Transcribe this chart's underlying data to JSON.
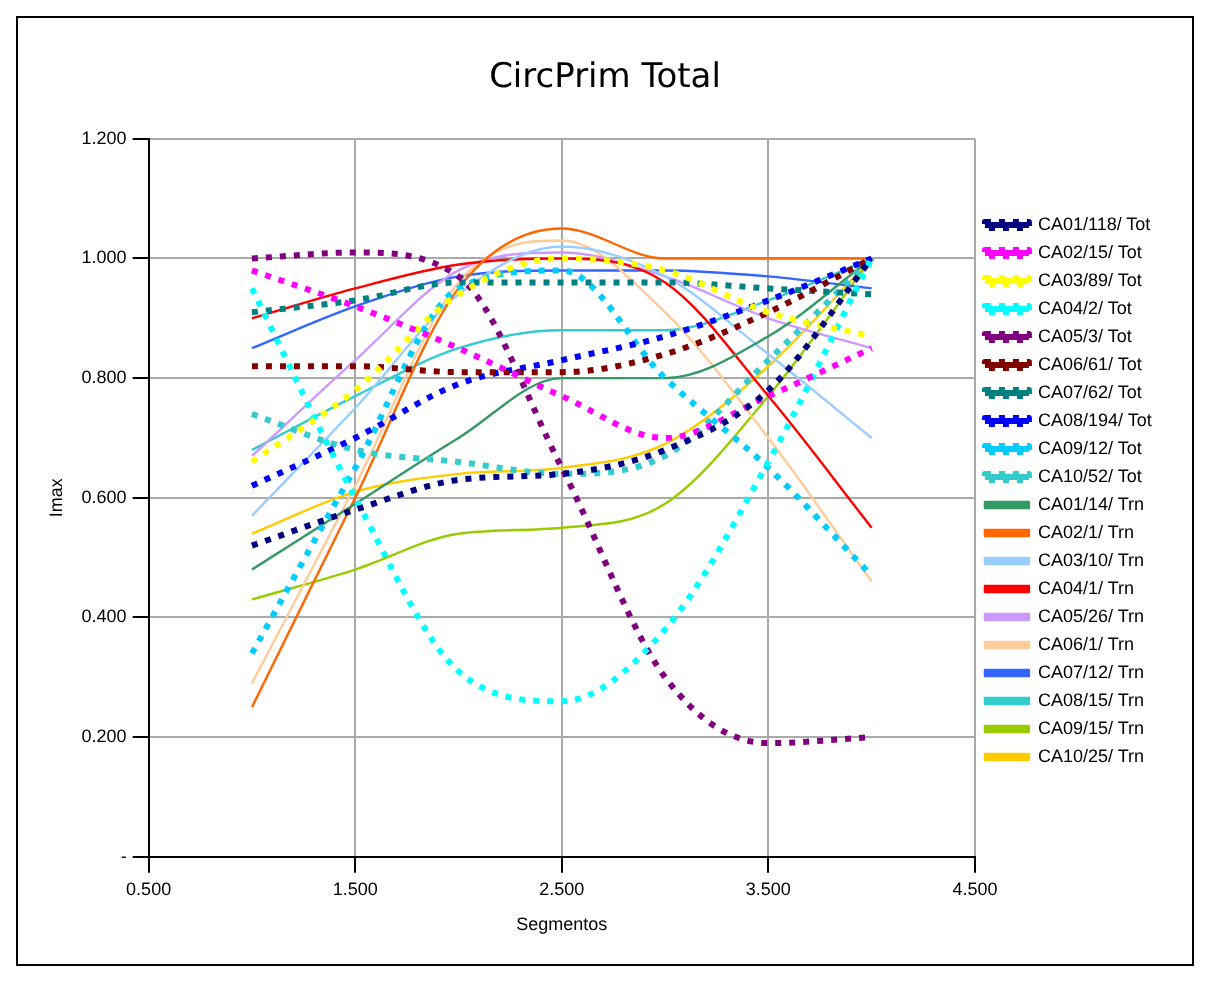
{
  "chart_data": {
    "type": "line",
    "title": "CircPrim Total",
    "xlabel": "Segmentos",
    "ylabel": "Imax",
    "x": [
      1,
      1.5,
      2,
      2.5,
      3,
      3.5,
      4
    ],
    "xlim": [
      0.5,
      4.5
    ],
    "xticks": [
      {
        "value": 0.5,
        "label": "0.500"
      },
      {
        "value": 1.5,
        "label": "1.500"
      },
      {
        "value": 2.5,
        "label": "2.500"
      },
      {
        "value": 3.5,
        "label": "3.500"
      },
      {
        "value": 4.5,
        "label": "4.500"
      }
    ],
    "ylim": [
      0,
      1.2
    ],
    "yticks": [
      {
        "value": 0,
        "label": "-"
      },
      {
        "value": 0.2,
        "label": "0.200"
      },
      {
        "value": 0.4,
        "label": "0.400"
      },
      {
        "value": 0.6,
        "label": "0.600"
      },
      {
        "value": 0.8,
        "label": "0.800"
      },
      {
        "value": 1.0,
        "label": "1.000"
      },
      {
        "value": 1.2,
        "label": "1.200"
      }
    ],
    "grid": true,
    "legend": "right",
    "marker": "none",
    "series": [
      {
        "name": "CA01/118/ Tot",
        "color": "#000080",
        "line_style": "dotted",
        "values": [
          0.52,
          0.58,
          0.63,
          0.64,
          0.68,
          0.78,
          1.0
        ]
      },
      {
        "name": "CA02/15/ Tot",
        "color": "#ff00ff",
        "line_style": "dotted",
        "values": [
          0.98,
          0.92,
          0.85,
          0.77,
          0.7,
          0.77,
          0.85
        ]
      },
      {
        "name": "CA03/89/ Tot",
        "color": "#ffff00",
        "line_style": "dotted",
        "values": [
          0.66,
          0.78,
          0.94,
          1.0,
          0.98,
          0.91,
          0.87
        ]
      },
      {
        "name": "CA04/2/ Tot",
        "color": "#00ffff",
        "line_style": "dotted",
        "values": [
          0.95,
          0.6,
          0.31,
          0.26,
          0.38,
          0.66,
          1.0
        ]
      },
      {
        "name": "CA05/3/ Tot",
        "color": "#800080",
        "line_style": "dotted",
        "values": [
          1.0,
          1.01,
          0.97,
          0.65,
          0.3,
          0.19,
          0.2
        ]
      },
      {
        "name": "CA06/61/ Tot",
        "color": "#800000",
        "line_style": "dotted",
        "values": [
          0.82,
          0.82,
          0.81,
          0.81,
          0.84,
          0.91,
          1.0
        ]
      },
      {
        "name": "CA07/62/ Tot",
        "color": "#008080",
        "line_style": "dotted",
        "values": [
          0.91,
          0.93,
          0.96,
          0.96,
          0.96,
          0.95,
          0.94
        ]
      },
      {
        "name": "CA08/194/ Tot",
        "color": "#0000ff",
        "line_style": "dotted",
        "values": [
          0.62,
          0.7,
          0.79,
          0.83,
          0.87,
          0.93,
          1.0
        ]
      },
      {
        "name": "CA09/12/ Tot",
        "color": "#00ccff",
        "line_style": "dotted",
        "values": [
          0.34,
          0.65,
          0.95,
          0.98,
          0.8,
          0.65,
          0.47
        ]
      },
      {
        "name": "CA10/52/ Tot",
        "color": "#33cccc",
        "line_style": "dotted",
        "values": [
          0.74,
          0.68,
          0.66,
          0.64,
          0.67,
          0.83,
          1.0
        ]
      },
      {
        "name": "CA01/14/ Trn",
        "color": "#339966",
        "line_style": "solid",
        "values": [
          0.48,
          0.59,
          0.7,
          0.8,
          0.8,
          0.87,
          1.0
        ]
      },
      {
        "name": "CA02/1/ Trn",
        "color": "#ff6600",
        "line_style": "solid",
        "values": [
          0.25,
          0.6,
          0.95,
          1.05,
          1.0,
          1.0,
          1.0
        ]
      },
      {
        "name": "CA03/10/ Trn",
        "color": "#99ccff",
        "line_style": "solid",
        "values": [
          0.57,
          0.75,
          0.94,
          1.02,
          0.97,
          0.84,
          0.7
        ]
      },
      {
        "name": "CA04/1/ Trn",
        "color": "#ff0000",
        "line_style": "solid",
        "values": [
          0.9,
          0.95,
          0.99,
          1.0,
          0.96,
          0.77,
          0.55
        ]
      },
      {
        "name": "CA05/26/ Trn",
        "color": "#cc99ff",
        "line_style": "solid",
        "values": [
          0.67,
          0.83,
          0.98,
          1.01,
          0.97,
          0.9,
          0.85
        ]
      },
      {
        "name": "CA06/1/ Trn",
        "color": "#ffcc99",
        "line_style": "solid",
        "values": [
          0.29,
          0.62,
          0.96,
          1.03,
          0.91,
          0.7,
          0.46
        ]
      },
      {
        "name": "CA07/12/ Trn",
        "color": "#3366ff",
        "line_style": "solid",
        "values": [
          0.85,
          0.92,
          0.97,
          0.98,
          0.98,
          0.97,
          0.95
        ]
      },
      {
        "name": "CA08/15/ Trn",
        "color": "#33cccc",
        "line_style": "solid",
        "values": [
          0.68,
          0.77,
          0.85,
          0.88,
          0.88,
          0.93,
          1.0
        ]
      },
      {
        "name": "CA09/15/ Trn",
        "color": "#99cc00",
        "line_style": "solid",
        "values": [
          0.43,
          0.48,
          0.54,
          0.55,
          0.59,
          0.77,
          1.0
        ]
      },
      {
        "name": "CA10/25/ Trn",
        "color": "#ffcc00",
        "line_style": "solid",
        "values": [
          0.54,
          0.61,
          0.64,
          0.65,
          0.69,
          0.82,
          1.0
        ]
      }
    ]
  }
}
